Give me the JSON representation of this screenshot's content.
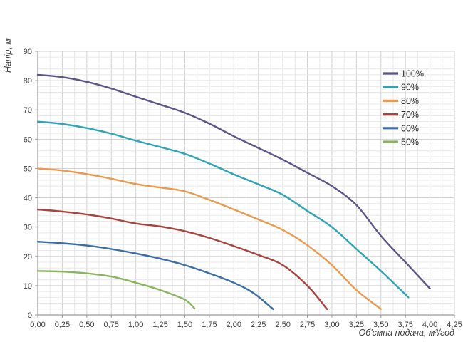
{
  "chart_data": {
    "type": "line",
    "title": "",
    "xlabel": "Об'ємна подача, м³/год",
    "ylabel": "Напір, м",
    "xlim": [
      0,
      4.25
    ],
    "ylim": [
      0,
      90
    ],
    "x_major_step": 0.25,
    "x_minor_step": 0.125,
    "y_major_step": 10,
    "y_minor_step": 2,
    "grid": "on",
    "legend_position": "top-right-inside",
    "x_tick_labels": [
      "0,00",
      "0,25",
      "0,50",
      "0,75",
      "1,00",
      "1,25",
      "1,50",
      "1,75",
      "2,00",
      "2,25",
      "2,50",
      "2,75",
      "3,00",
      "3,25",
      "3,50",
      "3,75",
      "4,00",
      "4,25"
    ],
    "y_tick_labels": [
      "0",
      "10",
      "20",
      "30",
      "40",
      "50",
      "60",
      "70",
      "80",
      "90"
    ],
    "series": [
      {
        "name": "100%",
        "color": "#5c5588",
        "points": [
          [
            0,
            82
          ],
          [
            0.25,
            81.2
          ],
          [
            0.5,
            79.6
          ],
          [
            0.75,
            77.3
          ],
          [
            1,
            74.5
          ],
          [
            1.25,
            71.8
          ],
          [
            1.5,
            69
          ],
          [
            1.75,
            65.3
          ],
          [
            2,
            61
          ],
          [
            2.25,
            57
          ],
          [
            2.5,
            53
          ],
          [
            2.75,
            48.5
          ],
          [
            3,
            44
          ],
          [
            3.25,
            37.5
          ],
          [
            3.5,
            27
          ],
          [
            3.75,
            18
          ],
          [
            4,
            9
          ]
        ]
      },
      {
        "name": "90%",
        "color": "#2da4b5",
        "points": [
          [
            0,
            66
          ],
          [
            0.25,
            65.2
          ],
          [
            0.5,
            63.8
          ],
          [
            0.75,
            61.9
          ],
          [
            1,
            59.5
          ],
          [
            1.25,
            57.3
          ],
          [
            1.5,
            55
          ],
          [
            1.75,
            51.7
          ],
          [
            2,
            48
          ],
          [
            2.25,
            44.6
          ],
          [
            2.5,
            41
          ],
          [
            2.75,
            35.5
          ],
          [
            3,
            30
          ],
          [
            3.25,
            22.5
          ],
          [
            3.5,
            15
          ],
          [
            3.78,
            6
          ]
        ]
      },
      {
        "name": "80%",
        "color": "#eb9a4d",
        "points": [
          [
            0,
            50
          ],
          [
            0.25,
            49.3
          ],
          [
            0.5,
            48.1
          ],
          [
            0.75,
            46.5
          ],
          [
            1,
            44.7
          ],
          [
            1.25,
            43.5
          ],
          [
            1.5,
            42.2
          ],
          [
            1.75,
            39.3
          ],
          [
            2,
            36
          ],
          [
            2.25,
            32.6
          ],
          [
            2.5,
            29
          ],
          [
            2.75,
            23.8
          ],
          [
            3,
            17
          ],
          [
            3.25,
            8.5
          ],
          [
            3.5,
            2
          ]
        ]
      },
      {
        "name": "70%",
        "color": "#a8433f",
        "points": [
          [
            0,
            36
          ],
          [
            0.25,
            35.3
          ],
          [
            0.5,
            34.3
          ],
          [
            0.75,
            32.9
          ],
          [
            1,
            31.2
          ],
          [
            1.25,
            30.2
          ],
          [
            1.5,
            28.6
          ],
          [
            1.75,
            26.3
          ],
          [
            2,
            23.5
          ],
          [
            2.25,
            20.5
          ],
          [
            2.5,
            17
          ],
          [
            2.75,
            10
          ],
          [
            2.95,
            2
          ]
        ]
      },
      {
        "name": "60%",
        "color": "#3a6da6",
        "points": [
          [
            0,
            25
          ],
          [
            0.25,
            24.5
          ],
          [
            0.5,
            23.7
          ],
          [
            0.75,
            22.5
          ],
          [
            1,
            21
          ],
          [
            1.25,
            19.2
          ],
          [
            1.5,
            17
          ],
          [
            1.75,
            14.2
          ],
          [
            2,
            11
          ],
          [
            2.2,
            7.5
          ],
          [
            2.4,
            2
          ]
        ]
      },
      {
        "name": "50%",
        "color": "#8ab55f",
        "points": [
          [
            0,
            15
          ],
          [
            0.25,
            14.8
          ],
          [
            0.5,
            14.2
          ],
          [
            0.75,
            13.1
          ],
          [
            1,
            11
          ],
          [
            1.25,
            8.5
          ],
          [
            1.5,
            5.2
          ],
          [
            1.6,
            2.2
          ]
        ]
      }
    ]
  }
}
